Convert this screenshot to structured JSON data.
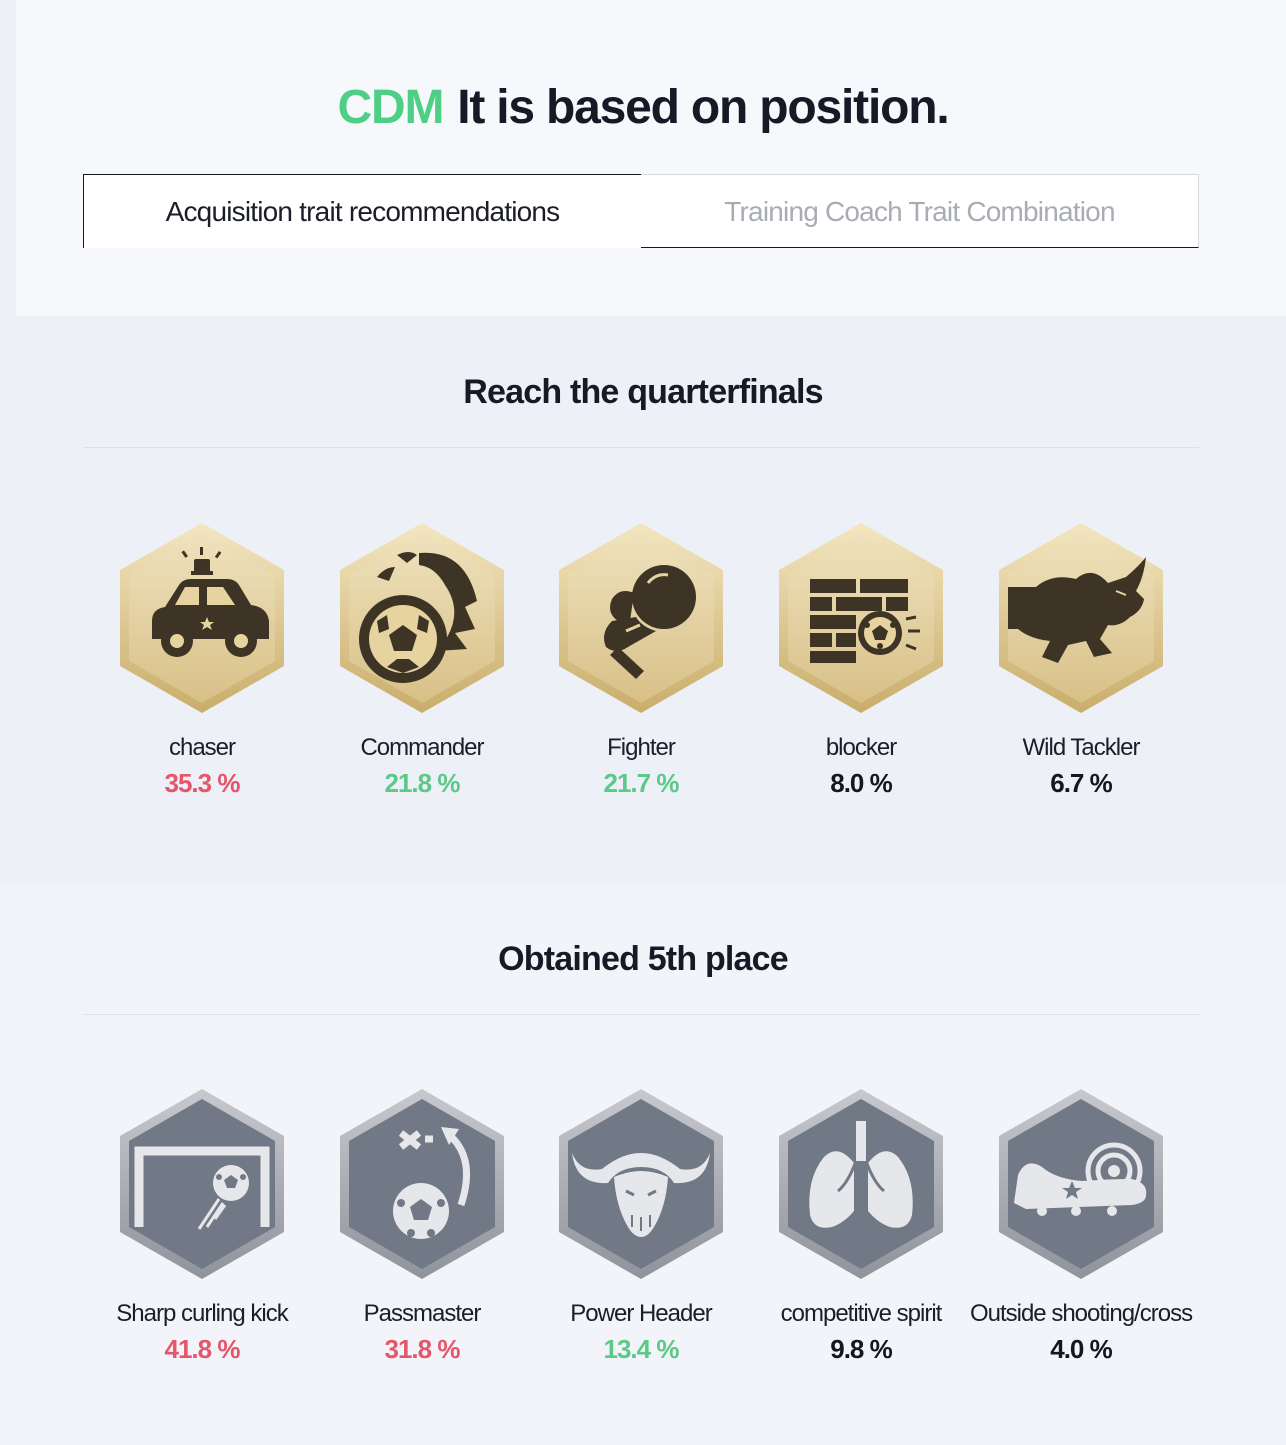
{
  "header": {
    "position": "CDM",
    "title_rest": "It is based on position."
  },
  "tabs": [
    {
      "label": "Acquisition trait recommendations",
      "active": true
    },
    {
      "label": "Training Coach Trait Combination",
      "active": false
    }
  ],
  "sections": [
    {
      "title": "Reach the quarterfinals",
      "badge_tier": "gold",
      "traits": [
        {
          "name": "chaser",
          "percent": "35.3 %",
          "level": "high",
          "icon": "police-car-icon"
        },
        {
          "name": "Commander",
          "percent": "21.8 %",
          "level": "mid",
          "icon": "commander-ball-icon"
        },
        {
          "name": "Fighter",
          "percent": "21.7 %",
          "level": "mid",
          "icon": "boxing-glove-icon"
        },
        {
          "name": "blocker",
          "percent": "8.0 %",
          "level": "low",
          "icon": "brick-wall-ball-icon"
        },
        {
          "name": "Wild Tackler",
          "percent": "6.7 %",
          "level": "low",
          "icon": "rhino-icon"
        }
      ]
    },
    {
      "title": "Obtained 5th place",
      "badge_tier": "silver",
      "traits": [
        {
          "name": "Sharp curling kick",
          "percent": "41.8 %",
          "level": "high",
          "icon": "goal-curl-kick-icon"
        },
        {
          "name": "Passmaster",
          "percent": "31.8 %",
          "level": "high",
          "icon": "pass-tactic-icon"
        },
        {
          "name": "Power Header",
          "percent": "13.4 %",
          "level": "mid",
          "icon": "buffalo-icon"
        },
        {
          "name": "competitive spirit",
          "percent": "9.8 %",
          "level": "low",
          "icon": "lungs-icon"
        },
        {
          "name": "Outside shooting/cross",
          "percent": "4.0 %",
          "level": "low",
          "icon": "boot-target-icon"
        }
      ]
    }
  ],
  "colors": {
    "accent": "#4fcf86",
    "high": "#e5566a",
    "mid": "#5bc987",
    "low": "#14171f",
    "gold_fill": "#e6d5a4",
    "silver_fill": "#717886"
  }
}
